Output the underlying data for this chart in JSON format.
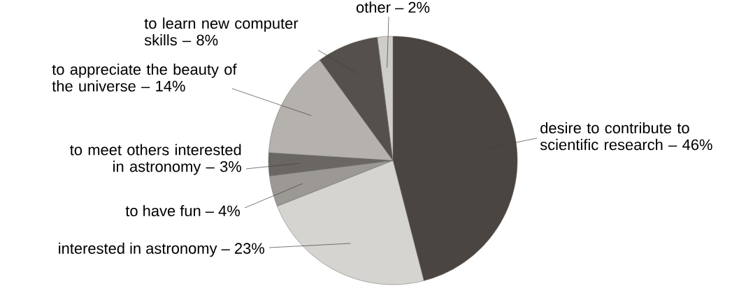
{
  "chart_data": {
    "type": "pie",
    "categories": [
      "desire to contribute to scientific research –",
      "interested in astronomy –",
      "to have fun –",
      "to meet others interested in astronomy –",
      "to appreciate the beauty of the universe –",
      "to learn new computer skills –",
      "other –"
    ],
    "values": [
      46,
      23,
      4,
      3,
      14,
      8,
      2
    ],
    "value_labels": [
      "46%",
      "23%",
      "4%",
      "3%",
      "14%",
      "8%",
      "2%"
    ],
    "colors": [
      "#4a4540",
      "#d6d4d0",
      "#9c9995",
      "#6a6661",
      "#b5b2ad",
      "#55504b",
      "#cfcdc9"
    ]
  }
}
